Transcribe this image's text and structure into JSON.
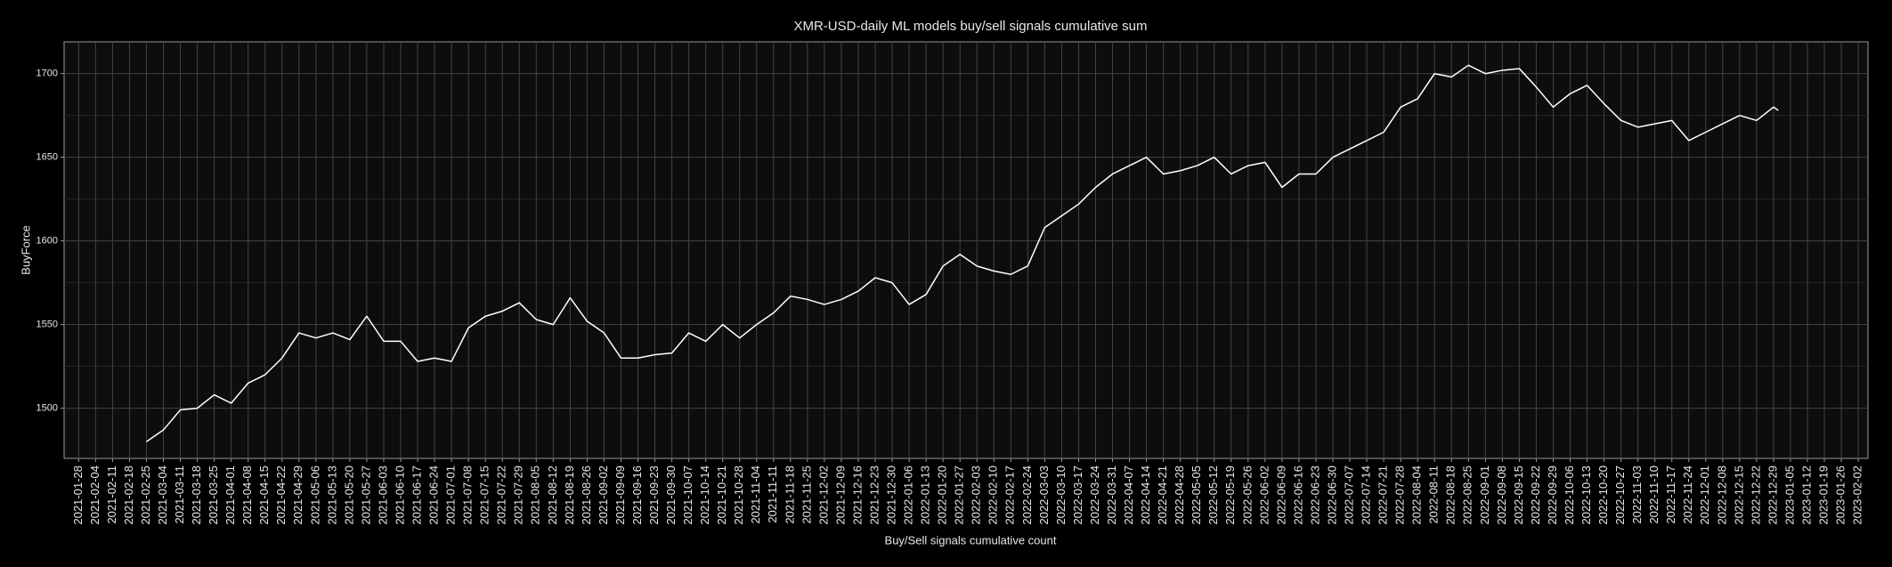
{
  "chart_data": {
    "type": "line",
    "title": "XMR-USD-daily ML models buy/sell signals cumulative sum",
    "x_label": "Buy/Sell signals cumulative count",
    "y_label": "BuyForce",
    "color": "#ffffff",
    "grid": true,
    "x": [
      "2021-02-25",
      "2021-03-04",
      "2021-03-11",
      "2021-03-18",
      "2021-03-25",
      "2021-04-01",
      "2021-04-08",
      "2021-04-15",
      "2021-04-22",
      "2021-04-29",
      "2021-05-06",
      "2021-05-13",
      "2021-05-20",
      "2021-05-27",
      "2021-06-03",
      "2021-06-10",
      "2021-06-17",
      "2021-06-24",
      "2021-07-01",
      "2021-07-08",
      "2021-07-15",
      "2021-07-22",
      "2021-07-29",
      "2021-08-05",
      "2021-08-12",
      "2021-08-19",
      "2021-08-26",
      "2021-09-02",
      "2021-09-09",
      "2021-09-16",
      "2021-09-23",
      "2021-09-30",
      "2021-10-07",
      "2021-10-14",
      "2021-10-21",
      "2021-10-28",
      "2021-11-04",
      "2021-11-11",
      "2021-11-18",
      "2021-11-25",
      "2021-12-02",
      "2021-12-09",
      "2021-12-16",
      "2021-12-23",
      "2021-12-30",
      "2022-01-06",
      "2022-01-13",
      "2022-01-20",
      "2022-01-27",
      "2022-02-03",
      "2022-02-10",
      "2022-02-17",
      "2022-02-24",
      "2022-03-03",
      "2022-03-10",
      "2022-03-17",
      "2022-03-24",
      "2022-03-31",
      "2022-04-07",
      "2022-04-14",
      "2022-04-21",
      "2022-04-28",
      "2022-05-05",
      "2022-05-12",
      "2022-05-19",
      "2022-05-26",
      "2022-06-02",
      "2022-06-09",
      "2022-06-16",
      "2022-06-23",
      "2022-06-30",
      "2022-07-07",
      "2022-07-14",
      "2022-07-21",
      "2022-07-28",
      "2022-08-04",
      "2022-08-11",
      "2022-08-18",
      "2022-08-25",
      "2022-09-01",
      "2022-09-08",
      "2022-09-15",
      "2022-09-22",
      "2022-09-29",
      "2022-10-06",
      "2022-10-13",
      "2022-10-20",
      "2022-10-27",
      "2022-11-03",
      "2022-11-10",
      "2022-11-17",
      "2022-11-24",
      "2022-12-01",
      "2022-12-08",
      "2022-12-15",
      "2022-12-22",
      "2022-12-29",
      "2022-12-31"
    ],
    "values": [
      1480,
      1487,
      1499,
      1500,
      1508,
      1503,
      1515,
      1520,
      1530,
      1545,
      1542,
      1545,
      1541,
      1555,
      1540,
      1540,
      1528,
      1530,
      1528,
      1548,
      1555,
      1558,
      1563,
      1553,
      1550,
      1566,
      1552,
      1545,
      1530,
      1530,
      1532,
      1533,
      1545,
      1540,
      1550,
      1542,
      1550,
      1557,
      1567,
      1565,
      1562,
      1565,
      1570,
      1578,
      1575,
      1562,
      1568,
      1585,
      1592,
      1585,
      1582,
      1580,
      1585,
      1608,
      1615,
      1622,
      1632,
      1640,
      1645,
      1650,
      1640,
      1642,
      1645,
      1650,
      1640,
      1645,
      1647,
      1632,
      1640,
      1640,
      1650,
      1655,
      1660,
      1665,
      1680,
      1685,
      1700,
      1698,
      1705,
      1700,
      1702,
      1703,
      1692,
      1680,
      1688,
      1693,
      1682,
      1672,
      1668,
      1670,
      1672,
      1660,
      1665,
      1670,
      1675,
      1672,
      1680,
      1678
    ],
    "xlim": [
      "2021-01-22",
      "2023-02-06"
    ],
    "xticks": [
      "2021-01-28",
      "2021-02-04",
      "2021-02-11",
      "2021-02-18",
      "2021-02-25",
      "2021-03-04",
      "2021-03-11",
      "2021-03-18",
      "2021-03-25",
      "2021-04-01",
      "2021-04-08",
      "2021-04-15",
      "2021-04-22",
      "2021-04-29",
      "2021-05-06",
      "2021-05-13",
      "2021-05-20",
      "2021-05-27",
      "2021-06-03",
      "2021-06-10",
      "2021-06-17",
      "2021-06-24",
      "2021-07-01",
      "2021-07-08",
      "2021-07-15",
      "2021-07-22",
      "2021-07-29",
      "2021-08-05",
      "2021-08-12",
      "2021-08-19",
      "2021-08-26",
      "2021-09-02",
      "2021-09-09",
      "2021-09-16",
      "2021-09-23",
      "2021-09-30",
      "2021-10-07",
      "2021-10-14",
      "2021-10-21",
      "2021-10-28",
      "2021-11-04",
      "2021-11-11",
      "2021-11-18",
      "2021-11-25",
      "2021-12-02",
      "2021-12-09",
      "2021-12-16",
      "2021-12-23",
      "2021-12-30",
      "2022-01-06",
      "2022-01-13",
      "2022-01-20",
      "2022-01-27",
      "2022-02-03",
      "2022-02-10",
      "2022-02-17",
      "2022-02-24",
      "2022-03-03",
      "2022-03-10",
      "2022-03-17",
      "2022-03-24",
      "2022-03-31",
      "2022-04-07",
      "2022-04-14",
      "2022-04-21",
      "2022-04-28",
      "2022-05-05",
      "2022-05-12",
      "2022-05-19",
      "2022-05-26",
      "2022-06-02",
      "2022-06-09",
      "2022-06-16",
      "2022-06-23",
      "2022-06-30",
      "2022-07-07",
      "2022-07-14",
      "2022-07-21",
      "2022-07-28",
      "2022-08-04",
      "2022-08-11",
      "2022-08-18",
      "2022-08-25",
      "2022-09-01",
      "2022-09-08",
      "2022-09-15",
      "2022-09-22",
      "2022-09-29",
      "2022-10-06",
      "2022-10-13",
      "2022-10-20",
      "2022-10-27",
      "2022-11-03",
      "2022-11-10",
      "2022-11-17",
      "2022-11-24",
      "2022-12-01",
      "2022-12-08",
      "2022-12-15",
      "2022-12-22",
      "2022-12-29",
      "2023-01-05",
      "2023-01-12",
      "2023-01-19",
      "2023-01-26",
      "2023-02-02"
    ],
    "ylim": [
      1470,
      1719
    ],
    "yticks": [
      1500,
      1550,
      1600,
      1650,
      1700
    ]
  }
}
